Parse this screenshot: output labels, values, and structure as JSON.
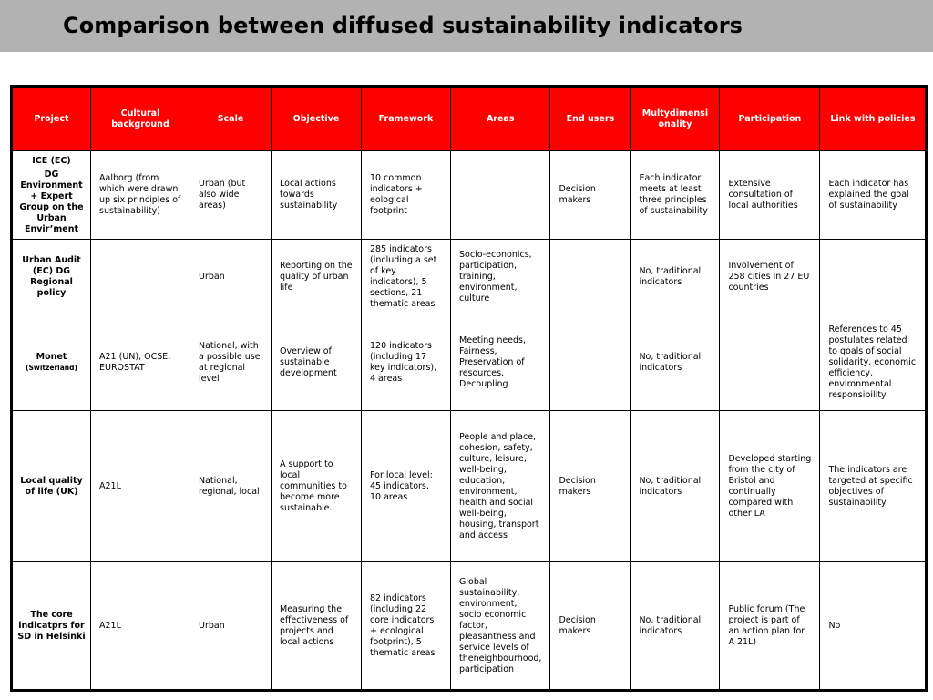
{
  "title": "Comparison between diffused sustainability indicators",
  "table": {
    "headers": [
      "Project",
      "Cultural background",
      "Scale",
      "Objective",
      "Framework",
      "Areas",
      "End users",
      "Multydimensionality",
      "Participation",
      "Link with policies"
    ],
    "header_break": {
      "multydimensionality_a": "Multydimensi",
      "multydimensionality_b": "onality"
    },
    "rows": [
      {
        "project_line1": "ICE (EC)",
        "project_line2": "DG Environment + Expert Group on the Urban Envir’ment",
        "cultural": "Aalborg (from which were drawn up six principles of sustainability)",
        "scale": "Urban (but also wide areas)",
        "objective": "Local actions towards sustainability",
        "framework": "10 common indicators + eological footprint",
        "areas": "",
        "end_users": "Decision makers",
        "multi": "Each indicator meets at least three principles of sustainability",
        "participation": "Extensive consultation of local authorities",
        "policies": "Each indicator has explained the goal of sustainability"
      },
      {
        "project_line1": "Urban Audit (EC) DG Regional policy",
        "cultural": "",
        "scale": "Urban",
        "objective": "Reporting on the quality of urban life",
        "framework": "285 indicators (including a set of key indicators), 5 sections, 21 thematic areas",
        "areas": "Socio-econonics, participation, training, environment, culture",
        "end_users": "",
        "multi": "No, traditional indicators",
        "participation": "Involvement of 258 cities in 27 EU countries",
        "policies": ""
      },
      {
        "project_line1": "Monet",
        "project_line2": "(Switzerland)",
        "cultural": "A21 (UN), OCSE, EUROSTAT",
        "scale": "National, with a possible use at regional level",
        "objective": "Overview of sustainable development",
        "framework": "120 indicators (including 17 key indicators), 4 areas",
        "areas": "Meeting needs, Fairness, Preservation of resources, Decoupling",
        "end_users": "",
        "multi": "No, traditional indicators",
        "participation": "",
        "policies": "References to 45 postulates related to goals of social solidarity, economic efficiency, environmental responsibility"
      },
      {
        "project_line1": "Local quality of life (UK)",
        "cultural": "A21L",
        "scale": "National, regional, local",
        "objective": "A support to local communities to become more sustainable.",
        "framework": "For local level: 45 indicators, 10 areas",
        "areas": "People and place, cohesion, safety, culture, leisure, well-being, education, environment, health and social well-being, housing, transport and access",
        "end_users": "Decision makers",
        "multi": "No, traditional indicators",
        "participation": "Developed starting from the city of Bristol and continually compared with other LA",
        "policies": "The indicators are targeted at specific objectives of sustainability"
      },
      {
        "project_line1": "The core indicatprs for SD in Helsinki",
        "cultural": "A21L",
        "scale": "Urban",
        "objective": "Measuring the effectiveness of projects and local actions",
        "framework": "82 indicators (including 22 core indicators + ecological footprint), 5 thematic areas",
        "areas": "Global sustainability, environment, socio economic factor, pleasantness and service levels of theneighbourhood, participation",
        "end_users": "Decision makers",
        "multi": "No, traditional indicators",
        "participation": "Public forum (The project is part of an action plan for A 21L)",
        "policies": "No"
      }
    ]
  }
}
